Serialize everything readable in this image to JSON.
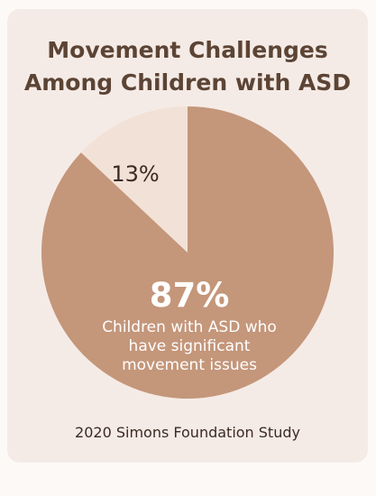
{
  "chart_data": {
    "type": "pie",
    "title": "Movement Challenges Among Children with ASD",
    "title_lines": [
      "Movement Challenges",
      "Among Children with ASD"
    ],
    "slices": [
      {
        "value": 87,
        "label": "87%",
        "description_lines": [
          "Children with ASD who",
          "have significant",
          "movement issues"
        ],
        "color": "#c4967a"
      },
      {
        "value": 13,
        "label": "13%",
        "color": "#f2e1d6"
      }
    ],
    "source": "2020 Simons Foundation Study"
  },
  "colors": {
    "page_background": "#fcf9f7",
    "card_background": "#f5ebe6",
    "title_text": "#5c4435",
    "footer_text": "#3b2a22",
    "large_slice_label": "#ffffff",
    "small_slice_label": "#3b2a22"
  }
}
